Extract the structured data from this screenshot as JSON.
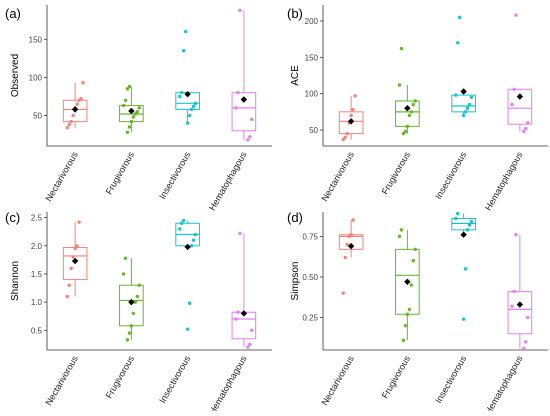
{
  "categories": [
    "Nectarivorous",
    "Frugivorous",
    "Insectivorous",
    "Hematophagous"
  ],
  "colors": {
    "Nectarivorous": "#f4837d",
    "Frugivorous": "#6ab42d",
    "Insectivorous": "#19c3cf",
    "Hematophagous": "#e580f0",
    "mean": "#000000",
    "axis": "#333333"
  },
  "chart_data": [
    {
      "type": "box",
      "label": "(a)",
      "ylabel": "Observed",
      "ylim": [
        10,
        195
      ],
      "yticks": [
        50,
        100,
        150
      ],
      "categories": [
        "Nectarivorous",
        "Frugivorous",
        "Insectivorous",
        "Hematophagous"
      ],
      "boxes": [
        {
          "q1": 42,
          "median": 58,
          "q3": 70,
          "whisker_low": 34,
          "whisker_high": 93,
          "mean": 58,
          "points": [
            34,
            38,
            42,
            50,
            60,
            65,
            70,
            72,
            93
          ]
        },
        {
          "q1": 42,
          "median": 52,
          "q3": 63,
          "whisker_low": 28,
          "whisker_high": 88,
          "mean": 56,
          "points": [
            28,
            35,
            42,
            48,
            52,
            55,
            60,
            63,
            70,
            85,
            88
          ]
        },
        {
          "q1": 58,
          "median": 66,
          "q3": 80,
          "whisker_low": 40,
          "whisker_high": 80,
          "mean": 78,
          "points": [
            40,
            50,
            58,
            62,
            66,
            75,
            80,
            135,
            160
          ]
        },
        {
          "q1": 30,
          "median": 60,
          "q3": 80,
          "whisker_low": 18,
          "whisker_high": 188,
          "mean": 71,
          "points": [
            18,
            22,
            45,
            60,
            80,
            188
          ]
        }
      ]
    },
    {
      "type": "box",
      "label": "(b)",
      "ylabel": "ACE",
      "ylim": [
        28,
        222
      ],
      "yticks": [
        50,
        100,
        150,
        200
      ],
      "categories": [
        "Nectarivorous",
        "Frugivorous",
        "Insectivorous",
        "Hematophagous"
      ],
      "boxes": [
        {
          "q1": 45,
          "median": 62,
          "q3": 75,
          "whisker_low": 37,
          "whisker_high": 97,
          "mean": 62,
          "points": [
            37,
            40,
            45,
            60,
            70,
            78,
            97
          ]
        },
        {
          "q1": 55,
          "median": 75,
          "q3": 90,
          "whisker_low": 45,
          "whisker_high": 112,
          "mean": 80,
          "points": [
            45,
            48,
            55,
            70,
            75,
            85,
            90,
            112,
            162
          ]
        },
        {
          "q1": 75,
          "median": 83,
          "q3": 98,
          "whisker_low": 70,
          "whisker_high": 98,
          "mean": 103,
          "points": [
            70,
            75,
            80,
            85,
            95,
            98,
            170,
            205
          ]
        },
        {
          "q1": 58,
          "median": 80,
          "q3": 106,
          "whisker_low": 48,
          "whisker_high": 106,
          "mean": 96,
          "points": [
            48,
            52,
            60,
            85,
            106,
            208
          ]
        }
      ]
    },
    {
      "type": "box",
      "label": "(c)",
      "ylabel": "Shannon",
      "ylim": [
        0.15,
        2.6
      ],
      "yticks": [
        0.5,
        1.0,
        1.5,
        2.0,
        2.5
      ],
      "ytick_labels": [
        "0.5",
        "1.0",
        "1.5",
        "2.0",
        "2.5"
      ],
      "categories": [
        "Nectarivorous",
        "Frugivorous",
        "Insectivorous",
        "Hematophagous"
      ],
      "boxes": [
        {
          "q1": 1.4,
          "median": 1.82,
          "q3": 1.97,
          "whisker_low": 1.1,
          "whisker_high": 2.42,
          "mean": 1.73,
          "points": [
            1.1,
            1.3,
            1.6,
            1.8,
            1.95,
            2.0,
            2.42
          ]
        },
        {
          "q1": 0.58,
          "median": 1.03,
          "q3": 1.3,
          "whisker_low": 0.33,
          "whisker_high": 1.78,
          "mean": 1.0,
          "points": [
            0.33,
            0.45,
            0.58,
            0.8,
            1.0,
            1.1,
            1.3,
            1.5,
            1.78
          ]
        },
        {
          "q1": 2.0,
          "median": 2.2,
          "q3": 2.4,
          "whisker_low": 2.0,
          "whisker_high": 2.45,
          "mean": 1.98,
          "points": [
            0.52,
            0.98,
            2.0,
            2.1,
            2.2,
            2.3,
            2.4,
            2.45
          ]
        },
        {
          "q1": 0.35,
          "median": 0.7,
          "q3": 0.82,
          "whisker_low": 0.2,
          "whisker_high": 2.22,
          "mean": 0.8,
          "points": [
            0.2,
            0.25,
            0.5,
            0.7,
            0.82,
            2.22
          ]
        }
      ]
    },
    {
      "type": "box",
      "label": "(d)",
      "ylabel": "Simpson",
      "ylim": [
        0.05,
        0.9
      ],
      "yticks": [
        0.25,
        0.5,
        0.75
      ],
      "ytick_labels": [
        "0.25",
        "0.50",
        "0.75"
      ],
      "categories": [
        "Nectarivorous",
        "Frugivorous",
        "Insectivorous",
        "Hematophagous"
      ],
      "boxes": [
        {
          "q1": 0.67,
          "median": 0.75,
          "q3": 0.76,
          "whisker_low": 0.62,
          "whisker_high": 0.85,
          "mean": 0.69,
          "points": [
            0.4,
            0.62,
            0.7,
            0.75,
            0.76,
            0.85
          ]
        },
        {
          "q1": 0.27,
          "median": 0.51,
          "q3": 0.67,
          "whisker_low": 0.11,
          "whisker_high": 0.79,
          "mean": 0.47,
          "points": [
            0.11,
            0.2,
            0.27,
            0.3,
            0.45,
            0.6,
            0.67,
            0.75,
            0.79
          ]
        },
        {
          "q1": 0.79,
          "median": 0.83,
          "q3": 0.86,
          "whisker_low": 0.76,
          "whisker_high": 0.89,
          "mean": 0.76,
          "points": [
            0.24,
            0.55,
            0.79,
            0.82,
            0.84,
            0.86,
            0.89
          ]
        },
        {
          "q1": 0.15,
          "median": 0.3,
          "q3": 0.41,
          "whisker_low": 0.06,
          "whisker_high": 0.76,
          "mean": 0.33,
          "points": [
            0.06,
            0.1,
            0.25,
            0.32,
            0.41,
            0.76
          ]
        }
      ]
    }
  ]
}
